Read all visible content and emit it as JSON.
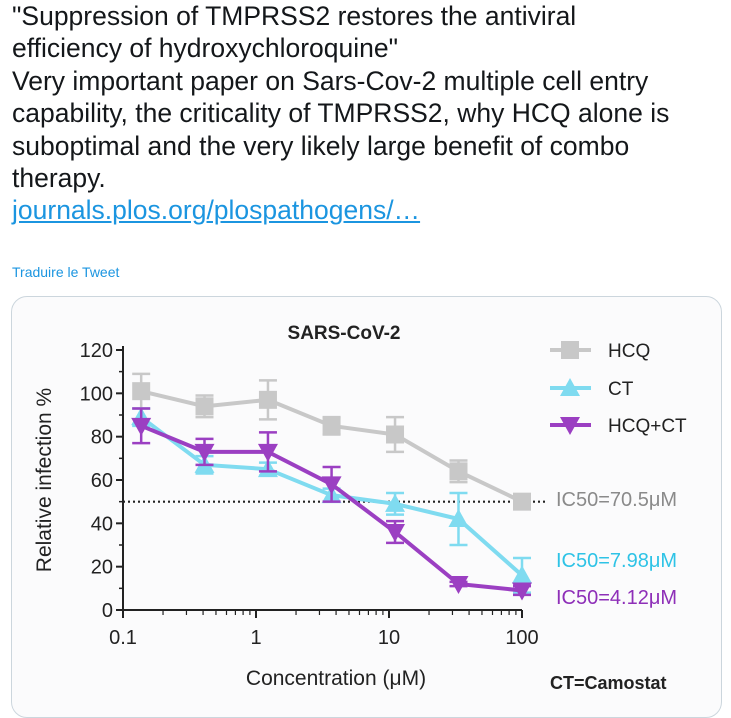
{
  "tweet": {
    "lines": [
      "\"Suppression of TMPRSS2 restores the antiviral",
      "efficiency of hydroxychloroquine\"",
      "Very important paper on Sars-Cov-2 multiple cell entry",
      "capability, the criticality of TMPRSS2, why HCQ alone is",
      "suboptimal and the very likely large benefit of combo",
      "therapy."
    ],
    "link": "journals.plos.org/plospathogens/…",
    "translate": "Traduire le Tweet"
  },
  "colors": {
    "text": "#14171a",
    "link": "#1b95e0",
    "card_border": "#ccd6dd"
  },
  "chart_data": {
    "type": "line",
    "title": "SARS-CoV-2",
    "xlabel": "Concentration (μM)",
    "ylabel": "Relative infection %",
    "x_scale": "log",
    "xlim": [
      0.1,
      100
    ],
    "ylim": [
      0,
      120
    ],
    "x_ticks": [
      "0.1",
      "1",
      "10",
      "100"
    ],
    "y_ticks": [
      "0",
      "20",
      "40",
      "60",
      "80",
      "100",
      "120"
    ],
    "grid": false,
    "reference_line": {
      "y": 50,
      "style": "dotted"
    },
    "legend_position": "top-right",
    "footnote": "CT=Camostat",
    "series": [
      {
        "name": "HCQ",
        "marker": "square",
        "color": "#c8c8c8",
        "x": [
          0.137,
          0.41,
          1.23,
          3.7,
          11.1,
          33.3,
          100
        ],
        "y": [
          101,
          94,
          97,
          85,
          81,
          64,
          50
        ],
        "err": [
          8,
          5,
          9,
          4,
          8,
          5,
          3
        ],
        "ic50": "IC50=70.5μM"
      },
      {
        "name": "CT",
        "marker": "triangle-up",
        "color": "#7fdbf0",
        "x": [
          0.137,
          0.41,
          1.23,
          3.7,
          11.1,
          33.3,
          100
        ],
        "y": [
          89,
          67,
          65,
          53,
          49,
          42,
          16
        ],
        "err": [
          4,
          4,
          3,
          3,
          5,
          12,
          8
        ],
        "ic50": "IC50=7.98μM"
      },
      {
        "name": "HCQ+CT",
        "marker": "triangle-down",
        "color": "#9b3fc2",
        "x": [
          0.137,
          0.41,
          1.23,
          3.7,
          11.1,
          33.3,
          100
        ],
        "y": [
          85,
          73,
          73,
          58,
          36,
          12,
          9
        ],
        "err": [
          8,
          6,
          9,
          8,
          5,
          1,
          2
        ],
        "ic50": "IC50=4.12μM"
      }
    ]
  }
}
